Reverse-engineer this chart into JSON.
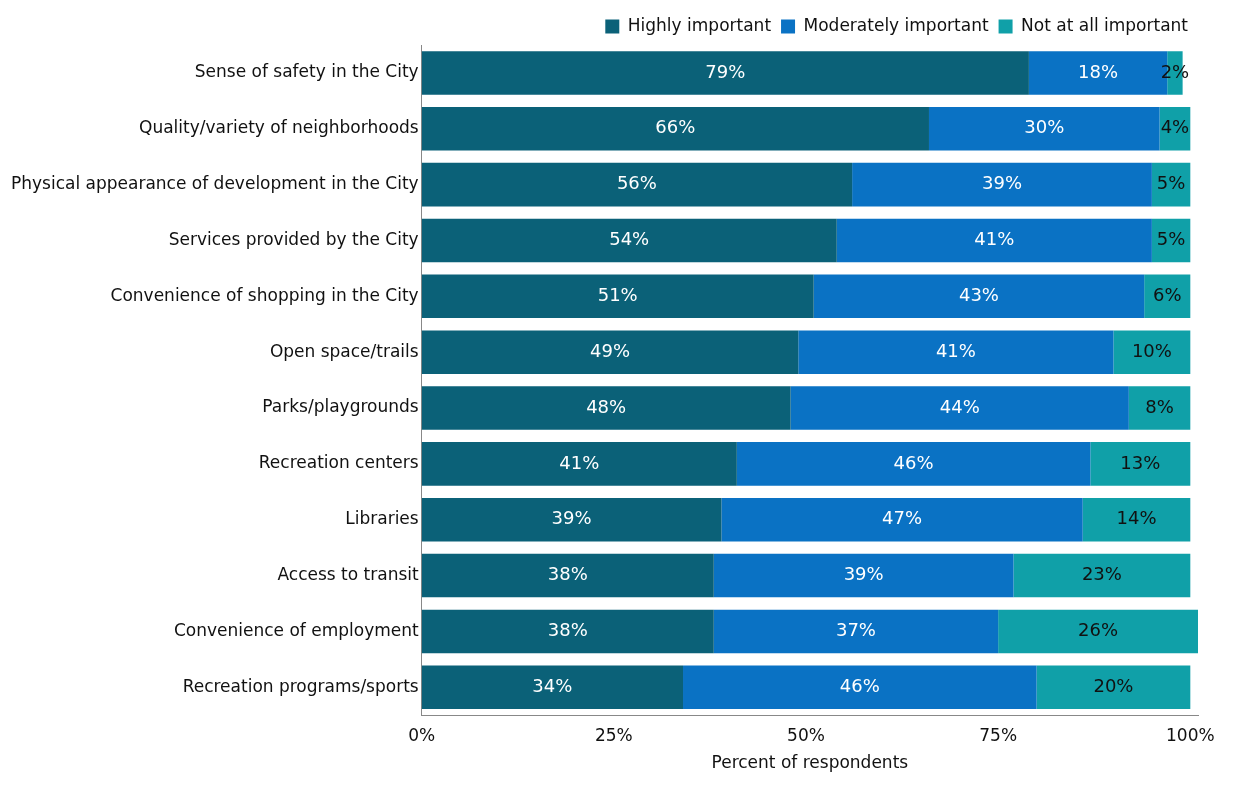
{
  "chart_data": {
    "type": "bar",
    "orientation": "horizontal",
    "stacked": true,
    "xlabel": "Percent of respondents",
    "categories": [
      "Sense of safety in the City",
      "Quality/variety of neighborhoods",
      "Physical appearance of development in the City",
      "Services provided by the City",
      "Convenience of shopping in the City",
      "Open space/trails",
      "Parks/playgrounds",
      "Recreation centers",
      "Libraries",
      "Access to transit",
      "Convenience of employment",
      "Recreation programs/sports"
    ],
    "series": [
      {
        "name": "Highly important",
        "color": "#0b6178",
        "values": [
          79,
          66,
          56,
          54,
          51,
          49,
          48,
          41,
          39,
          38,
          38,
          34
        ],
        "value_labels": [
          "79%",
          "66%",
          "56%",
          "54%",
          "51%",
          "49%",
          "48%",
          "41%",
          "39%",
          "38%",
          "38%",
          "34%"
        ]
      },
      {
        "name": "Moderately important",
        "color": "#0a72c4",
        "values": [
          18,
          30,
          39,
          41,
          43,
          41,
          44,
          46,
          47,
          39,
          37,
          46
        ],
        "value_labels": [
          "18%",
          "30%",
          "39%",
          "41%",
          "43%",
          "41%",
          "44%",
          "46%",
          "47%",
          "39%",
          "37%",
          "46%"
        ]
      },
      {
        "name": "Not at all important",
        "color": "#10a0a8",
        "values": [
          2,
          4,
          5,
          5,
          6,
          10,
          8,
          13,
          14,
          23,
          26,
          20
        ],
        "value_labels": [
          "2%",
          "4%",
          "5%",
          "5%",
          "6%",
          "10%",
          "8%",
          "13%",
          "14%",
          "23%",
          "26%",
          "20%"
        ]
      }
    ],
    "xlim": [
      0,
      101
    ],
    "xticks": [
      {
        "value": 0,
        "label": "0%"
      },
      {
        "value": 25,
        "label": "25%"
      },
      {
        "value": 50,
        "label": "50%"
      },
      {
        "value": 75,
        "label": "75%"
      },
      {
        "value": 100,
        "label": "100%"
      }
    ],
    "grid": false,
    "legend": "top right"
  }
}
